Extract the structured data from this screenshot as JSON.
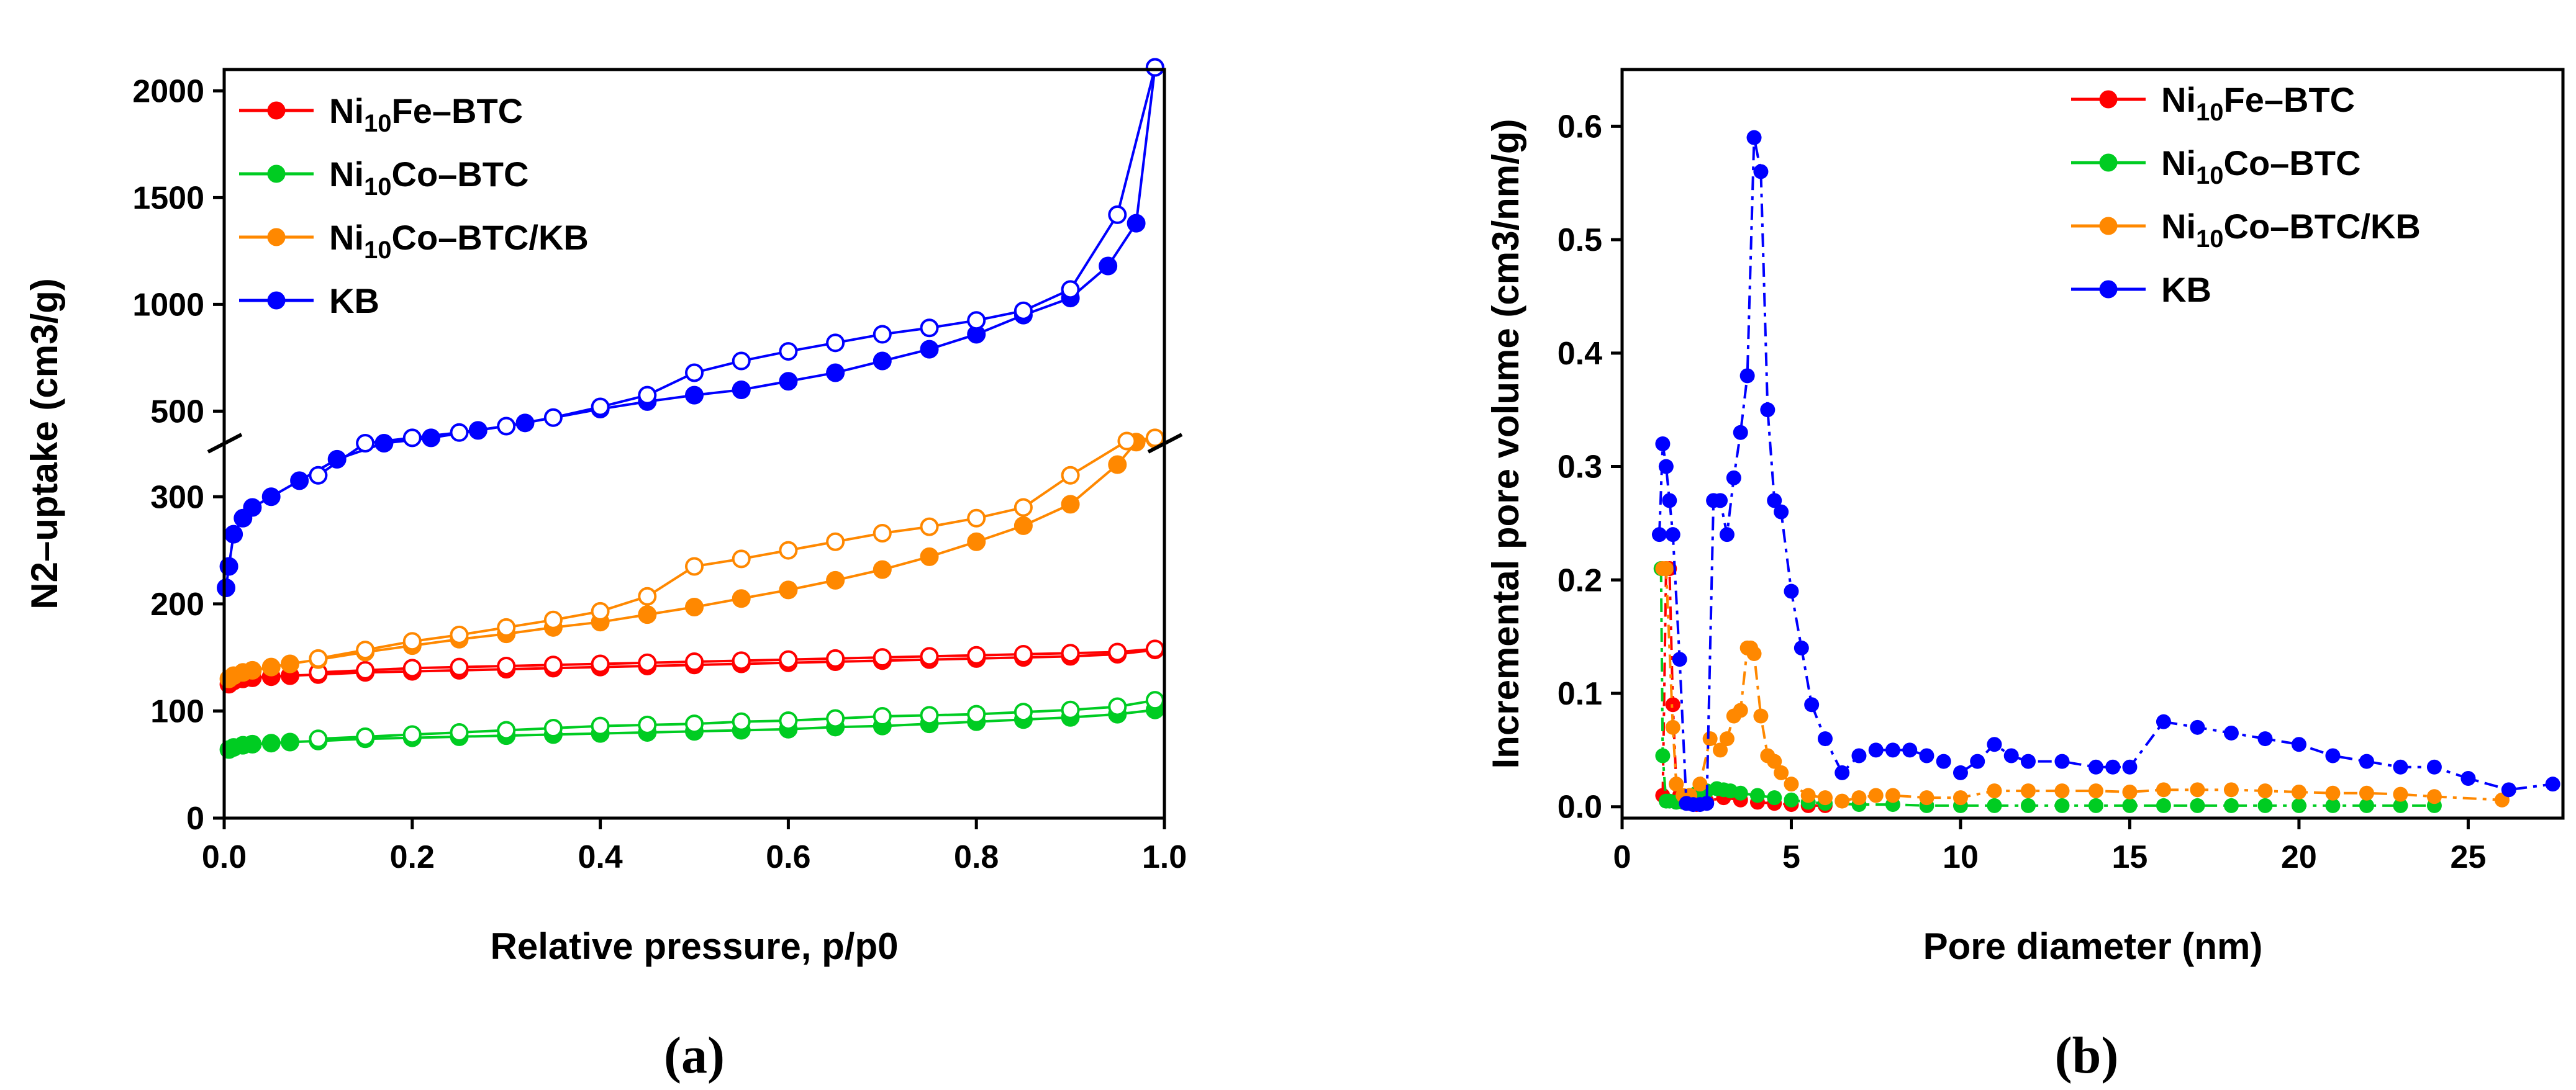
{
  "chart_data": [
    {
      "type": "line",
      "panel_label": "(a)",
      "title": "",
      "xlabel": "Relative pressure, p/p0",
      "ylabel": "N2–uptake (cm3/g)",
      "xlim": [
        0,
        1.0
      ],
      "ylim_lower": [
        0,
        350
      ],
      "ylim_upper": [
        350,
        2100
      ],
      "axis_break": "y between 350 and 500",
      "xticks": [
        "0.0",
        "0.2",
        "0.4",
        "0.6",
        "0.8",
        "1.0"
      ],
      "yticks_lower": [
        "0",
        "100",
        "200",
        "300"
      ],
      "yticks_upper": [
        "500",
        "1000",
        "1500",
        "2000"
      ],
      "legend": {
        "position": "top-left",
        "entries": [
          {
            "main": "Ni",
            "sub": "10",
            "rest": "Fe–BTC",
            "color": "#ff0000"
          },
          {
            "main": "Ni",
            "sub": "10",
            "rest": "Co–BTC",
            "color": "#00cc22"
          },
          {
            "main": "Ni",
            "sub": "10",
            "rest": "Co–BTC/KB",
            "color": "#ff8800"
          },
          {
            "main": "KB",
            "sub": "",
            "rest": "",
            "color": "#0000ff"
          }
        ]
      },
      "series": [
        {
          "name": "Ni10Fe–BTC adsorption",
          "color": "#ff0000",
          "marker": "filled",
          "x": [
            0.005,
            0.01,
            0.02,
            0.03,
            0.05,
            0.07,
            0.1,
            0.15,
            0.2,
            0.25,
            0.3,
            0.35,
            0.4,
            0.45,
            0.5,
            0.55,
            0.6,
            0.65,
            0.7,
            0.75,
            0.8,
            0.85,
            0.9,
            0.95,
            0.99
          ],
          "y": [
            125,
            128,
            130,
            131,
            132,
            133,
            134,
            136,
            137,
            138,
            139,
            140,
            141,
            142,
            143,
            144,
            145,
            146,
            147,
            148,
            149,
            150,
            151,
            153,
            157
          ]
        },
        {
          "name": "Ni10Fe–BTC desorption",
          "color": "#ff0000",
          "marker": "open",
          "x": [
            0.99,
            0.95,
            0.9,
            0.85,
            0.8,
            0.75,
            0.7,
            0.65,
            0.6,
            0.55,
            0.5,
            0.45,
            0.4,
            0.35,
            0.3,
            0.25,
            0.2,
            0.15,
            0.1
          ],
          "y": [
            158,
            155,
            154,
            153,
            152,
            151,
            150,
            149,
            148,
            147,
            146,
            145,
            144,
            143,
            142,
            141,
            140,
            138,
            136
          ]
        },
        {
          "name": "Ni10Co–BTC adsorption",
          "color": "#00cc22",
          "marker": "filled",
          "x": [
            0.005,
            0.01,
            0.02,
            0.03,
            0.05,
            0.07,
            0.1,
            0.15,
            0.2,
            0.25,
            0.3,
            0.35,
            0.4,
            0.45,
            0.5,
            0.55,
            0.6,
            0.65,
            0.7,
            0.75,
            0.8,
            0.85,
            0.9,
            0.95,
            0.99
          ],
          "y": [
            64,
            66,
            68,
            69,
            70,
            71,
            72,
            74,
            75,
            76,
            77,
            78,
            79,
            80,
            81,
            82,
            83,
            85,
            86,
            88,
            90,
            92,
            94,
            97,
            101
          ]
        },
        {
          "name": "Ni10Co–BTC desorption",
          "color": "#00cc22",
          "marker": "open",
          "x": [
            0.99,
            0.95,
            0.9,
            0.85,
            0.8,
            0.75,
            0.7,
            0.65,
            0.6,
            0.55,
            0.5,
            0.45,
            0.4,
            0.35,
            0.3,
            0.25,
            0.2,
            0.15,
            0.1
          ],
          "y": [
            110,
            104,
            101,
            99,
            97,
            96,
            95,
            93,
            91,
            90,
            88,
            87,
            86,
            84,
            82,
            80,
            78,
            76,
            74
          ]
        },
        {
          "name": "Ni10Co–BTC/KB adsorption",
          "color": "#ff8800",
          "marker": "filled",
          "x": [
            0.005,
            0.01,
            0.02,
            0.03,
            0.05,
            0.07,
            0.1,
            0.15,
            0.2,
            0.25,
            0.3,
            0.35,
            0.4,
            0.45,
            0.5,
            0.55,
            0.6,
            0.65,
            0.7,
            0.75,
            0.8,
            0.85,
            0.9,
            0.95,
            0.97,
            0.99
          ],
          "y": [
            130,
            133,
            136,
            138,
            141,
            144,
            148,
            155,
            161,
            167,
            172,
            178,
            183,
            190,
            197,
            205,
            213,
            222,
            232,
            244,
            258,
            273,
            293,
            330,
            355,
            370
          ]
        },
        {
          "name": "Ni10Co–BTC/KB desorption",
          "color": "#ff8800",
          "marker": "open",
          "x": [
            0.99,
            0.96,
            0.9,
            0.85,
            0.8,
            0.75,
            0.7,
            0.65,
            0.6,
            0.55,
            0.5,
            0.45,
            0.4,
            0.35,
            0.3,
            0.25,
            0.2,
            0.15,
            0.1
          ],
          "y": [
            375,
            360,
            320,
            290,
            280,
            272,
            266,
            258,
            250,
            242,
            235,
            207,
            193,
            185,
            178,
            171,
            165,
            157,
            149
          ]
        },
        {
          "name": "KB adsorption",
          "color": "#0000ff",
          "marker": "filled",
          "x": [
            0.002,
            0.005,
            0.01,
            0.02,
            0.03,
            0.05,
            0.08,
            0.12,
            0.17,
            0.22,
            0.27,
            0.32,
            0.4,
            0.45,
            0.5,
            0.55,
            0.6,
            0.65,
            0.7,
            0.75,
            0.8,
            0.85,
            0.9,
            0.94,
            0.97,
            0.99
          ],
          "y": [
            215,
            235,
            265,
            280,
            290,
            300,
            315,
            335,
            350,
            375,
            410,
            445,
            510,
            545,
            575,
            600,
            640,
            680,
            735,
            790,
            860,
            950,
            1030,
            1180,
            1380,
            2110
          ]
        },
        {
          "name": "KB desorption",
          "color": "#0000ff",
          "marker": "open",
          "x": [
            0.99,
            0.95,
            0.9,
            0.85,
            0.8,
            0.75,
            0.7,
            0.65,
            0.6,
            0.55,
            0.5,
            0.45,
            0.4,
            0.35,
            0.3,
            0.25,
            0.2,
            0.15,
            0.1
          ],
          "y": [
            2110,
            1420,
            1070,
            970,
            925,
            890,
            860,
            820,
            780,
            735,
            680,
            575,
            520,
            470,
            430,
            400,
            375,
            350,
            320
          ]
        }
      ]
    },
    {
      "type": "line",
      "panel_label": "(b)",
      "title": "",
      "xlabel": "Pore diameter (nm)",
      "ylabel": "Incremental pore volume (cm3/nm/g)",
      "xlim": [
        0,
        27.8
      ],
      "ylim": [
        -0.01,
        0.65
      ],
      "xticks": [
        "0",
        "5",
        "10",
        "15",
        "20",
        "25"
      ],
      "yticks": [
        "0.0",
        "0.1",
        "0.2",
        "0.3",
        "0.4",
        "0.5",
        "0.6"
      ],
      "legend": {
        "position": "top-right",
        "entries": [
          {
            "main": "Ni",
            "sub": "10",
            "rest": "Fe–BTC",
            "color": "#ff0000"
          },
          {
            "main": "Ni",
            "sub": "10",
            "rest": "Co–BTC",
            "color": "#00cc22"
          },
          {
            "main": "Ni",
            "sub": "10",
            "rest": "Co–BTC/KB",
            "color": "#ff8800"
          },
          {
            "main": "KB",
            "sub": "",
            "rest": "",
            "color": "#0000ff"
          }
        ]
      },
      "series": [
        {
          "name": "Ni10Fe–BTC",
          "color": "#ff0000",
          "x": [
            1.2,
            1.3,
            1.4,
            1.5,
            1.6,
            1.7,
            1.8,
            2.0,
            2.2,
            2.5,
            3.0,
            3.5,
            4.0,
            4.5,
            5.0,
            5.5,
            6.0
          ],
          "y": [
            0.01,
            0.21,
            0.21,
            0.09,
            0.02,
            0.01,
            0.005,
            0.003,
            0.002,
            0.005,
            0.008,
            0.006,
            0.004,
            0.003,
            0.002,
            0.001,
            0.001
          ]
        },
        {
          "name": "Ni10Co–BTC",
          "color": "#00cc22",
          "x": [
            1.15,
            1.2,
            1.3,
            1.4,
            1.6,
            1.8,
            2.0,
            2.2,
            2.5,
            2.8,
            3.0,
            3.2,
            3.5,
            4.0,
            4.5,
            5.0,
            5.5,
            6.0,
            7,
            8,
            9,
            10,
            11,
            12,
            13,
            14,
            15,
            16,
            17,
            18,
            19,
            20,
            21,
            22,
            23,
            24
          ],
          "y": [
            0.21,
            0.045,
            0.005,
            0.005,
            0.004,
            0.004,
            0.01,
            0.012,
            0.014,
            0.016,
            0.015,
            0.014,
            0.012,
            0.01,
            0.008,
            0.006,
            0.004,
            0.003,
            0.002,
            0.002,
            0.001,
            0.001,
            0.001,
            0.001,
            0.001,
            0.001,
            0.001,
            0.001,
            0.001,
            0.001,
            0.001,
            0.001,
            0.001,
            0.001,
            0.001,
            0.001
          ]
        },
        {
          "name": "Ni10Co–BTC/KB",
          "color": "#ff8800",
          "x": [
            1.2,
            1.3,
            1.5,
            1.6,
            1.8,
            2.0,
            2.3,
            2.6,
            2.9,
            3.1,
            3.3,
            3.5,
            3.7,
            3.8,
            3.9,
            4.1,
            4.3,
            4.5,
            4.7,
            5.0,
            5.5,
            6.0,
            6.5,
            7.0,
            7.5,
            8,
            9,
            10,
            11,
            12,
            13,
            14,
            15,
            16,
            17,
            18,
            19,
            20,
            21,
            22,
            23,
            24,
            26
          ],
          "y": [
            0.21,
            0.21,
            0.07,
            0.02,
            0.01,
            0.01,
            0.02,
            0.06,
            0.05,
            0.06,
            0.08,
            0.085,
            0.14,
            0.14,
            0.135,
            0.08,
            0.045,
            0.04,
            0.03,
            0.02,
            0.01,
            0.008,
            0.005,
            0.008,
            0.01,
            0.01,
            0.008,
            0.008,
            0.014,
            0.014,
            0.014,
            0.014,
            0.013,
            0.015,
            0.015,
            0.015,
            0.014,
            0.013,
            0.012,
            0.012,
            0.011,
            0.009,
            0.006
          ]
        },
        {
          "name": "KB",
          "color": "#0000ff",
          "x": [
            1.1,
            1.2,
            1.3,
            1.4,
            1.5,
            1.7,
            1.9,
            2.1,
            2.3,
            2.5,
            2.7,
            2.9,
            3.1,
            3.3,
            3.5,
            3.7,
            3.9,
            4.1,
            4.3,
            4.5,
            4.7,
            5.0,
            5.3,
            5.6,
            6.0,
            6.5,
            7,
            7.5,
            8,
            8.5,
            9,
            9.5,
            10,
            10.5,
            11,
            11.5,
            12,
            13,
            14,
            14.5,
            15,
            16,
            17,
            18,
            19,
            20,
            21,
            22,
            23,
            24,
            25,
            26.2,
            27.5
          ],
          "y": [
            0.24,
            0.32,
            0.3,
            0.27,
            0.24,
            0.13,
            0.003,
            0.002,
            0.002,
            0.003,
            0.27,
            0.27,
            0.24,
            0.29,
            0.33,
            0.38,
            0.59,
            0.56,
            0.35,
            0.27,
            0.26,
            0.19,
            0.14,
            0.09,
            0.06,
            0.03,
            0.045,
            0.05,
            0.05,
            0.05,
            0.045,
            0.04,
            0.03,
            0.04,
            0.055,
            0.045,
            0.04,
            0.04,
            0.035,
            0.035,
            0.035,
            0.075,
            0.07,
            0.065,
            0.06,
            0.055,
            0.045,
            0.04,
            0.035,
            0.035,
            0.025,
            0.015,
            0.02
          ]
        }
      ]
    }
  ]
}
